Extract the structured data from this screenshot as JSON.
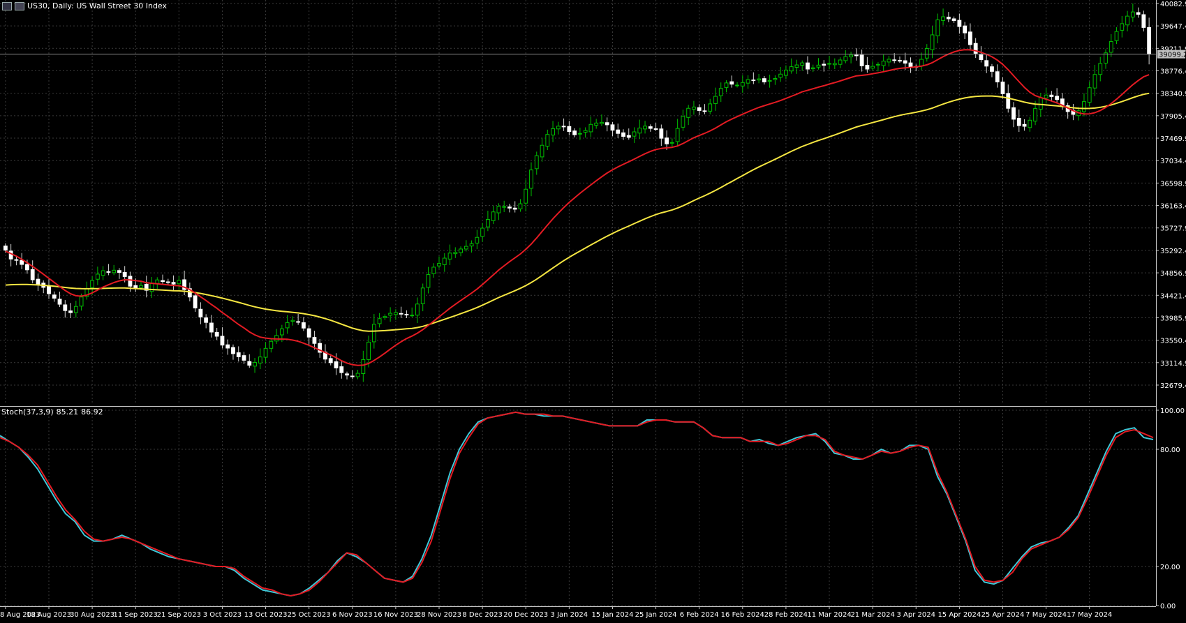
{
  "header": {
    "title": "US30, Daily:  US Wall Street 30 Index"
  },
  "colors": {
    "background": "#000000",
    "grid": "#3a3a3a",
    "up_candle": "#00c000",
    "down_candle": "#ffffff",
    "ma_fast": "#e31b23",
    "ma_slow": "#f5e642",
    "stoch_main": "#3ec8d8",
    "stoch_signal": "#e31b23",
    "axis_text": "#ffffff",
    "price_label_bg": "#c0c0c0"
  },
  "icons": [
    "chart-window-icon",
    "symbol-flag-icon"
  ],
  "stoch_label": {
    "name": "Stoch(37,3,9)",
    "main": "85.21",
    "signal": "86.92"
  },
  "chart_data": [
    {
      "type": "candlestick",
      "price_axis_ticks": [
        "40082.9",
        "39647.4",
        "39211.9",
        "38776.4",
        "38340.9",
        "37905.4",
        "37469.9",
        "37034.4",
        "36598.9",
        "36163.4",
        "35727.9",
        "35292.4",
        "34856.9",
        "34421.4",
        "33985.9",
        "33550.4",
        "33114.9",
        "32679.4"
      ],
      "ylim": [
        32300,
        40150
      ],
      "last_price": "39099.2",
      "x_labels": [
        "8 Aug 2023",
        "18 Aug 2023",
        "30 Aug 2023",
        "11 Sep 2023",
        "21 Sep 2023",
        "3 Oct 2023",
        "13 Oct 2023",
        "25 Oct 2023",
        "6 Nov 2023",
        "16 Nov 2023",
        "28 Nov 2023",
        "8 Dec 2023",
        "20 Dec 2023",
        "3 Jan 2024",
        "15 Jan 2024",
        "25 Jan 2024",
        "6 Feb 2024",
        "16 Feb 2024",
        "28 Feb 2024",
        "11 Mar 2024",
        "21 Mar 2024",
        "3 Apr 2024",
        "15 Apr 2024",
        "25 Apr 2024",
        "7 May 2024",
        "17 May 2024"
      ],
      "label_candle_index": [
        0,
        8,
        16,
        24,
        32,
        40,
        48,
        56,
        64,
        72,
        80,
        88,
        96,
        104,
        112,
        120,
        128,
        136,
        144,
        152,
        160,
        168,
        176,
        184,
        192,
        200
      ],
      "close": [
        35298,
        35125,
        35105,
        35020,
        34915,
        34722,
        34640,
        34575,
        34452,
        34365,
        34248,
        34125,
        34085,
        34205,
        34388,
        34552,
        34709,
        34832,
        34898,
        34872,
        34908,
        34865,
        34785,
        34598,
        34552,
        34612,
        34518,
        34658,
        34720,
        34688,
        34672,
        34639,
        34711,
        34532,
        34388,
        34175,
        34002,
        33895,
        33708,
        33627,
        33455,
        33397,
        33289,
        33228,
        33161,
        33065,
        33119,
        33225,
        33392,
        33528,
        33641,
        33772,
        33892,
        33935,
        33908,
        33785,
        33610,
        33488,
        33315,
        33183,
        33114,
        33012,
        32921,
        32873,
        32854,
        32908,
        33174,
        33513,
        33859,
        33968,
        34010,
        34072,
        34087,
        34064,
        34040,
        34036,
        34252,
        34563,
        34823,
        34967,
        35039,
        35142,
        35240,
        35255,
        35319,
        35371,
        35422,
        35545,
        35724,
        35893,
        36039,
        36148,
        36142,
        36113,
        36091,
        36197,
        36479,
        36853,
        37130,
        37332,
        37542,
        37655,
        37702,
        37690,
        37598,
        37536,
        37561,
        37617,
        37737,
        37763,
        37777,
        37729,
        37624,
        37562,
        37504,
        37485,
        37592,
        37666,
        37704,
        37659,
        37649,
        37468,
        37359,
        37385,
        37658,
        37896,
        38049,
        38074,
        38006,
        37993,
        38135,
        38281,
        38435,
        38541,
        38517,
        38499,
        38549,
        38605,
        38598,
        38619,
        38560,
        38588,
        38627,
        38712,
        38791,
        38856,
        38890,
        38930,
        38810,
        38835,
        38887,
        38884,
        38918,
        38920,
        38986,
        39052,
        39082,
        39076,
        38873,
        38810,
        38863,
        38901,
        38965,
        39001,
        38984,
        38972,
        38924,
        38847,
        38850,
        38999,
        39209,
        39474,
        39764,
        39825,
        39785,
        39750,
        39635,
        39512,
        39284,
        39116,
        38993,
        38867,
        38765,
        38560,
        38331,
        38049,
        37837,
        37713,
        37700,
        37818,
        38044,
        38255,
        38306,
        38277,
        38219,
        38081,
        37985,
        37931,
        38001,
        38179,
        38448,
        38705,
        38919,
        39124,
        39344,
        39539,
        39691,
        39837,
        39918,
        39872,
        39617,
        39099
      ],
      "ma_fast_line": [
        35278,
        35230,
        35181,
        35120,
        35054,
        34982,
        34907,
        34830,
        34751,
        34671,
        34592,
        34515,
        34450,
        34413,
        34404,
        34425,
        34468,
        34524,
        34580,
        34625,
        34669,
        34701,
        34722,
        34720,
        34705,
        34694,
        34664,
        34653,
        34645,
        34633,
        34622,
        34610,
        34608,
        34578,
        34532,
        34466,
        34392,
        34319,
        34242,
        34170,
        34087,
        34015,
        33934,
        33856,
        33787,
        33712,
        33654,
        33610,
        33591,
        33579,
        33574,
        33572,
        33569,
        33552,
        33529,
        33493,
        33450,
        33405,
        33358,
        33309,
        33264,
        33212,
        33151,
        33107,
        33076,
        33060,
        33066,
        33099,
        33157,
        33225,
        33299,
        33377,
        33453,
        33521,
        33582,
        33631,
        33687,
        33755,
        33836,
        33920,
        34004,
        34087,
        34170,
        34246,
        34321,
        34393,
        34464,
        34543,
        34630,
        34723,
        34818,
        34911,
        34994,
        35073,
        35147,
        35224,
        35313,
        35416,
        35534,
        35659,
        35784,
        35905,
        36017,
        36123,
        36223,
        36311,
        36401,
        36482,
        36564,
        36643,
        36721,
        36794,
        36856,
        36912,
        36963,
        37013,
        37063,
        37117,
        37169,
        37213,
        37249,
        37270,
        37282,
        37291,
        37319,
        37366,
        37423,
        37478,
        37522,
        37563,
        37611,
        37665,
        37727,
        37788,
        37840,
        37887,
        37934,
        37981,
        38024,
        38066,
        38099,
        38132,
        38164,
        38200,
        38240,
        38282,
        38323,
        38369,
        38398,
        38428,
        38459,
        38487,
        38519,
        38547,
        38580,
        38614,
        38647,
        38679,
        38688,
        38700,
        38719,
        38737,
        38759,
        38782,
        38804,
        38823,
        38834,
        38843,
        38852,
        38867,
        38893,
        38934,
        38993,
        39051,
        39101,
        39143,
        39172,
        39187,
        39183,
        39165,
        39135,
        39095,
        39048,
        38985,
        38901,
        38797,
        38681,
        38567,
        38455,
        38361,
        38295,
        38258,
        38225,
        38190,
        38153,
        38107,
        38054,
        38002,
        37962,
        37939,
        37941,
        37964,
        38006,
        38066,
        38141,
        38226,
        38318,
        38414,
        38507,
        38588,
        38661,
        38701
      ],
      "ma_slow_line": [
        34620,
        34626,
        34629,
        34631,
        34631,
        34627,
        34622,
        34615,
        34607,
        34597,
        34586,
        34574,
        34561,
        34553,
        34549,
        34548,
        34549,
        34551,
        34555,
        34559,
        34562,
        34564,
        34563,
        34558,
        34552,
        34547,
        34539,
        34533,
        34528,
        34522,
        34516,
        34510,
        34507,
        34500,
        34489,
        34475,
        34457,
        34437,
        34414,
        34391,
        34365,
        34339,
        34311,
        34284,
        34255,
        34224,
        34198,
        34174,
        34153,
        34136,
        34122,
        34111,
        34101,
        34091,
        34080,
        34065,
        34046,
        34025,
        33999,
        33969,
        33936,
        33900,
        33861,
        33822,
        33785,
        33756,
        33733,
        33724,
        33726,
        33731,
        33736,
        33744,
        33753,
        33762,
        33771,
        33779,
        33795,
        33818,
        33850,
        33885,
        33920,
        33955,
        33991,
        34027,
        34065,
        34103,
        34142,
        34184,
        34230,
        34279,
        34329,
        34377,
        34422,
        34466,
        34510,
        34557,
        34609,
        34668,
        34734,
        34805,
        34878,
        34952,
        35023,
        35093,
        35158,
        35219,
        35279,
        35338,
        35398,
        35455,
        35513,
        35569,
        35621,
        35671,
        35719,
        35765,
        35812,
        35858,
        35905,
        35947,
        35987,
        36020,
        36048,
        36077,
        36114,
        36158,
        36208,
        36259,
        36308,
        36354,
        36403,
        36457,
        36513,
        36571,
        36629,
        36686,
        36744,
        36802,
        36857,
        36911,
        36961,
        37010,
        37060,
        37112,
        37163,
        37214,
        37262,
        37309,
        37348,
        37387,
        37425,
        37460,
        37496,
        37532,
        37570,
        37609,
        37649,
        37687,
        37716,
        37744,
        37772,
        37800,
        37829,
        37859,
        37887,
        37913,
        37935,
        37954,
        37972,
        37995,
        38021,
        38054,
        38093,
        38131,
        38166,
        38199,
        38227,
        38250,
        38267,
        38279,
        38285,
        38288,
        38287,
        38280,
        38266,
        38247,
        38222,
        38195,
        38169,
        38147,
        38131,
        38122,
        38114,
        38105,
        38096,
        38085,
        38072,
        38059,
        38050,
        38046,
        38047,
        38054,
        38068,
        38088,
        38114,
        38145,
        38180,
        38217,
        38255,
        38290,
        38320,
        38339
      ]
    },
    {
      "type": "line",
      "indicator": "Stoch(37,3,9)",
      "ylim": [
        0,
        100
      ],
      "y_ticks": [
        "100.00",
        "80.00",
        "20.00",
        "0.00"
      ],
      "main_line": [
        87,
        84,
        81,
        76,
        70,
        62,
        54,
        47,
        43,
        36,
        33,
        33,
        34,
        36,
        34,
        32,
        29,
        27,
        25,
        24,
        23,
        22,
        21,
        20,
        20,
        18,
        14,
        11,
        8,
        7,
        6,
        5,
        6,
        9,
        13,
        17,
        23,
        27,
        25,
        22,
        18,
        14,
        13,
        12,
        15,
        24,
        36,
        52,
        68,
        80,
        88,
        94,
        96,
        97,
        98,
        99,
        98,
        98,
        97,
        97,
        97,
        96,
        95,
        94,
        93,
        92,
        92,
        92,
        92,
        95,
        95,
        95,
        94,
        94,
        94,
        91,
        87,
        86,
        86,
        86,
        84,
        85,
        83,
        82,
        84,
        86,
        87,
        88,
        84,
        78,
        77,
        75,
        75,
        77,
        80,
        78,
        79,
        82,
        82,
        80,
        66,
        57,
        45,
        33,
        18,
        12,
        11,
        13,
        19,
        25,
        30,
        32,
        33,
        35,
        40,
        46,
        57,
        68,
        79,
        88,
        90,
        91,
        86,
        85
      ],
      "signal_line": [
        86,
        84,
        81,
        77,
        72,
        64,
        56,
        49,
        44,
        38,
        34,
        33,
        34,
        35,
        34,
        32,
        30,
        28,
        26,
        24,
        23,
        22,
        21,
        20,
        20,
        19,
        15,
        12,
        9,
        8,
        6,
        5,
        6,
        8,
        12,
        17,
        22,
        27,
        26,
        22,
        18,
        14,
        13,
        12,
        14,
        22,
        33,
        49,
        65,
        78,
        86,
        93,
        96,
        97,
        98,
        99,
        98,
        98,
        98,
        97,
        97,
        96,
        95,
        94,
        93,
        92,
        92,
        92,
        92,
        94,
        95,
        95,
        94,
        94,
        94,
        91,
        87,
        86,
        86,
        86,
        84,
        84,
        84,
        82,
        83,
        85,
        87,
        87,
        85,
        79,
        77,
        76,
        75,
        77,
        79,
        78,
        79,
        81,
        82,
        81,
        68,
        58,
        46,
        34,
        20,
        13,
        12,
        13,
        17,
        24,
        29,
        31,
        33,
        35,
        39,
        45,
        55,
        66,
        77,
        86,
        89,
        90,
        88,
        86
      ],
      "x_labels_shared": true
    }
  ]
}
